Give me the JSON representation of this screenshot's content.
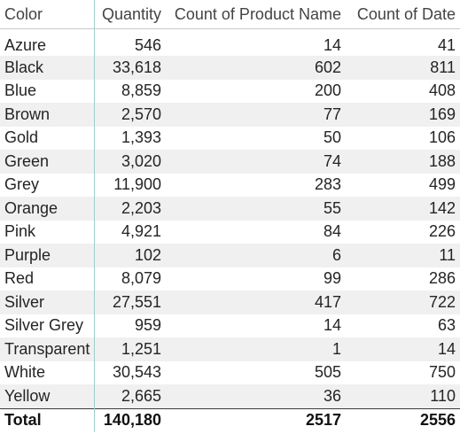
{
  "matrix": {
    "headers": {
      "color": "Color",
      "quantity": "Quantity",
      "count_product_name": "Count of Product Name",
      "count_date": "Count of Date"
    },
    "rows": [
      {
        "color": "Azure",
        "quantity": "546",
        "count_product_name": "14",
        "count_date": "41"
      },
      {
        "color": "Black",
        "quantity": "33,618",
        "count_product_name": "602",
        "count_date": "811"
      },
      {
        "color": "Blue",
        "quantity": "8,859",
        "count_product_name": "200",
        "count_date": "408"
      },
      {
        "color": "Brown",
        "quantity": "2,570",
        "count_product_name": "77",
        "count_date": "169"
      },
      {
        "color": "Gold",
        "quantity": "1,393",
        "count_product_name": "50",
        "count_date": "106"
      },
      {
        "color": "Green",
        "quantity": "3,020",
        "count_product_name": "74",
        "count_date": "188"
      },
      {
        "color": "Grey",
        "quantity": "11,900",
        "count_product_name": "283",
        "count_date": "499"
      },
      {
        "color": "Orange",
        "quantity": "2,203",
        "count_product_name": "55",
        "count_date": "142"
      },
      {
        "color": "Pink",
        "quantity": "4,921",
        "count_product_name": "84",
        "count_date": "226"
      },
      {
        "color": "Purple",
        "quantity": "102",
        "count_product_name": "6",
        "count_date": "11"
      },
      {
        "color": "Red",
        "quantity": "8,079",
        "count_product_name": "99",
        "count_date": "286"
      },
      {
        "color": "Silver",
        "quantity": "27,551",
        "count_product_name": "417",
        "count_date": "722"
      },
      {
        "color": "Silver Grey",
        "quantity": "959",
        "count_product_name": "14",
        "count_date": "63"
      },
      {
        "color": "Transparent",
        "quantity": "1,251",
        "count_product_name": "1",
        "count_date": "14"
      },
      {
        "color": "White",
        "quantity": "30,543",
        "count_product_name": "505",
        "count_date": "750"
      },
      {
        "color": "Yellow",
        "quantity": "2,665",
        "count_product_name": "36",
        "count_date": "110"
      }
    ],
    "total": {
      "label": "Total",
      "quantity": "140,180",
      "count_product_name": "2517",
      "count_date": "2556"
    },
    "colors": {
      "row_band": "#f0f0f0",
      "divider": "#9cd1c8",
      "text": "#252423"
    }
  }
}
